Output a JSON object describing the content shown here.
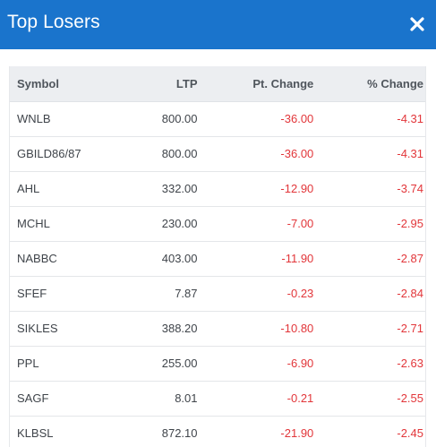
{
  "title": "Top Losers",
  "colors": {
    "header_bg": "#1a74cc",
    "negative": "#e2363a"
  },
  "icons": {
    "close": "close-icon"
  },
  "columns": [
    "Symbol",
    "LTP",
    "Pt. Change",
    "% Change"
  ],
  "rows": [
    {
      "symbol": "WNLB",
      "ltp": "800.00",
      "pt_change": "-36.00",
      "pct_change": "-4.31"
    },
    {
      "symbol": "GBILD86/87",
      "ltp": "800.00",
      "pt_change": "-36.00",
      "pct_change": "-4.31"
    },
    {
      "symbol": "AHL",
      "ltp": "332.00",
      "pt_change": "-12.90",
      "pct_change": "-3.74"
    },
    {
      "symbol": "MCHL",
      "ltp": "230.00",
      "pt_change": "-7.00",
      "pct_change": "-2.95"
    },
    {
      "symbol": "NABBC",
      "ltp": "403.00",
      "pt_change": "-11.90",
      "pct_change": "-2.87"
    },
    {
      "symbol": "SFEF",
      "ltp": "7.87",
      "pt_change": "-0.23",
      "pct_change": "-2.84"
    },
    {
      "symbol": "SIKLES",
      "ltp": "388.20",
      "pt_change": "-10.80",
      "pct_change": "-2.71"
    },
    {
      "symbol": "PPL",
      "ltp": "255.00",
      "pt_change": "-6.90",
      "pct_change": "-2.63"
    },
    {
      "symbol": "SAGF",
      "ltp": "8.01",
      "pt_change": "-0.21",
      "pct_change": "-2.55"
    },
    {
      "symbol": "KLBSL",
      "ltp": "872.10",
      "pt_change": "-21.90",
      "pct_change": "-2.45"
    }
  ]
}
